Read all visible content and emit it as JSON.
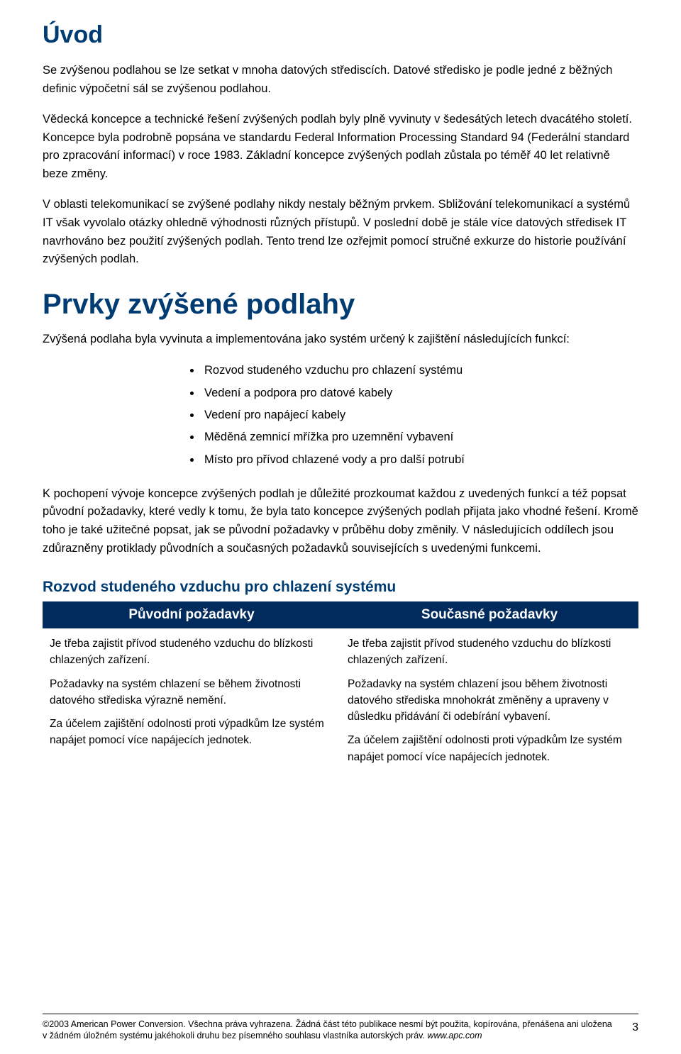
{
  "colors": {
    "heading": "#003b71",
    "table_header_bg": "#002b5c",
    "table_header_text": "#ffffff",
    "body_text": "#000000",
    "background": "#ffffff",
    "footer_rule": "#000000"
  },
  "typography": {
    "h1_fontsize": 34,
    "h2_fontsize": 40,
    "h3_fontsize": 21,
    "body_fontsize": 16.5,
    "table_header_fontsize": 19,
    "table_body_fontsize": 15.5,
    "footer_fontsize": 12.5,
    "font_family": "Arial"
  },
  "section1": {
    "heading": "Úvod",
    "p1": "Se zvýšenou podlahou se lze setkat v mnoha datových střediscích. Datové středisko je podle jedné z běžných definic výpočetní sál se zvýšenou podlahou.",
    "p2": "Vědecká koncepce a technické řešení zvýšených podlah byly plně vyvinuty v šedesátých letech dvacátého století. Koncepce byla podrobně popsána ve standardu Federal Information Processing Standard 94 (Federální standard pro zpracování informací) v roce 1983. Základní koncepce zvýšených podlah zůstala po téměř 40 let relativně beze změny.",
    "p3": "V oblasti telekomunikací se zvýšené podlahy nikdy nestaly běžným prvkem. Sbližování telekomunikací a systémů IT však vyvolalo otázky ohledně výhodnosti různých přístupů. V poslední době je stále více datových středisek IT navrhováno bez použití zvýšených podlah. Tento trend lze ozřejmit pomocí stručné exkurze do historie používání zvýšených podlah."
  },
  "section2": {
    "heading": "Prvky zvýšené podlahy",
    "intro": "Zvýšená podlaha byla vyvinuta a implementována jako systém určený k zajištění následujících funkcí:",
    "bullets": [
      "Rozvod studeného vzduchu pro chlazení systému",
      "Vedení a podpora pro datové kabely",
      "Vedení pro napájecí kabely",
      "Měděná zemnicí mřížka pro uzemnění vybavení",
      "Místo pro přívod chlazené vody a pro další potrubí"
    ],
    "p_after": "K pochopení vývoje koncepce zvýšených podlah je důležité prozkoumat každou z uvedených funkcí a též popsat původní požadavky, které vedly k tomu, že byla tato koncepce zvýšených podlah přijata jako vhodné řešení. Kromě toho je také užitečné popsat, jak se původní požadavky v průběhu doby změnily. V následujících oddílech jsou zdůrazněny protiklady původních a současných požadavků souvisejících s uvedenými funkcemi."
  },
  "section3": {
    "heading": "Rozvod studeného vzduchu pro chlazení systému",
    "table": {
      "header_left": "Původní požadavky",
      "header_right": "Současné požadavky",
      "left": [
        "Je třeba zajistit přívod studeného vzduchu do blízkosti chlazených zařízení.",
        "Požadavky na systém chlazení se během životnosti datového střediska výrazně nemění.",
        "Za účelem zajištění odolnosti proti výpadkům lze systém napájet pomocí více napájecích jednotek."
      ],
      "right": [
        "Je třeba zajistit přívod studeného vzduchu do blízkosti chlazených zařízení.",
        "Požadavky na systém chlazení jsou během životnosti datového střediska mnohokrát změněny a upraveny v důsledku přidávání či odebírání vybavení.",
        "Za účelem zajištění odolnosti proti výpadkům lze systém napájet pomocí více napájecích jednotek."
      ]
    }
  },
  "footer": {
    "text_main": "©2003 American Power Conversion. Všechna práva vyhrazena. Žádná část této publikace nesmí být použita, kopírována, přenášena ani uložena v žádném úložném systému jakéhokoli druhu bez písemného souhlasu vlastníka autorských práv. ",
    "site": "www.apc.com",
    "page_number": "3"
  }
}
